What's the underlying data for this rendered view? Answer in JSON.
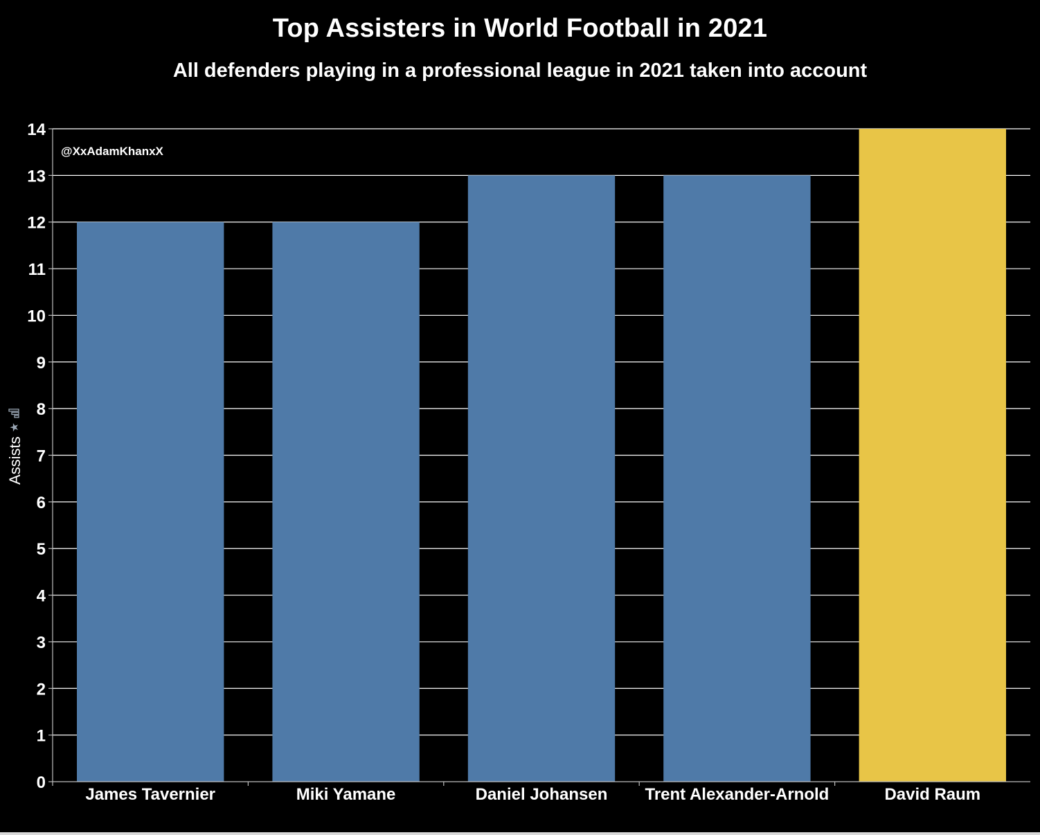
{
  "header": {
    "title": "Top Assisters in World Football in 2021",
    "subtitle": "All defenders playing in a professional league in 2021 taken into account"
  },
  "watermark": "@XxAdamKhanxX",
  "y_axis": {
    "label": "Assists",
    "icons": [
      "pin-icon",
      "sort-icon"
    ]
  },
  "colors": {
    "background": "#000000",
    "default_bar": "#4f7aa8",
    "highlight_bar": "#e8c547",
    "gridline": "#ffffff",
    "text": "#ffffff"
  },
  "chart_data": {
    "type": "bar",
    "title": "Top Assisters in World Football in 2021",
    "subtitle": "All defenders playing in a professional league in 2021 taken into account",
    "xlabel": "",
    "ylabel": "Assists",
    "categories": [
      "James Tavernier",
      "Miki Yamane",
      "Daniel Johansen",
      "Trent Alexander-Arnold",
      "David Raum"
    ],
    "values": [
      12,
      12,
      13,
      13,
      14
    ],
    "highlight": [
      "David Raum"
    ],
    "ylim": [
      0,
      14
    ],
    "yticks": [
      0,
      1,
      2,
      3,
      4,
      5,
      6,
      7,
      8,
      9,
      10,
      11,
      12,
      13,
      14
    ],
    "grid": true,
    "legend": "none"
  }
}
